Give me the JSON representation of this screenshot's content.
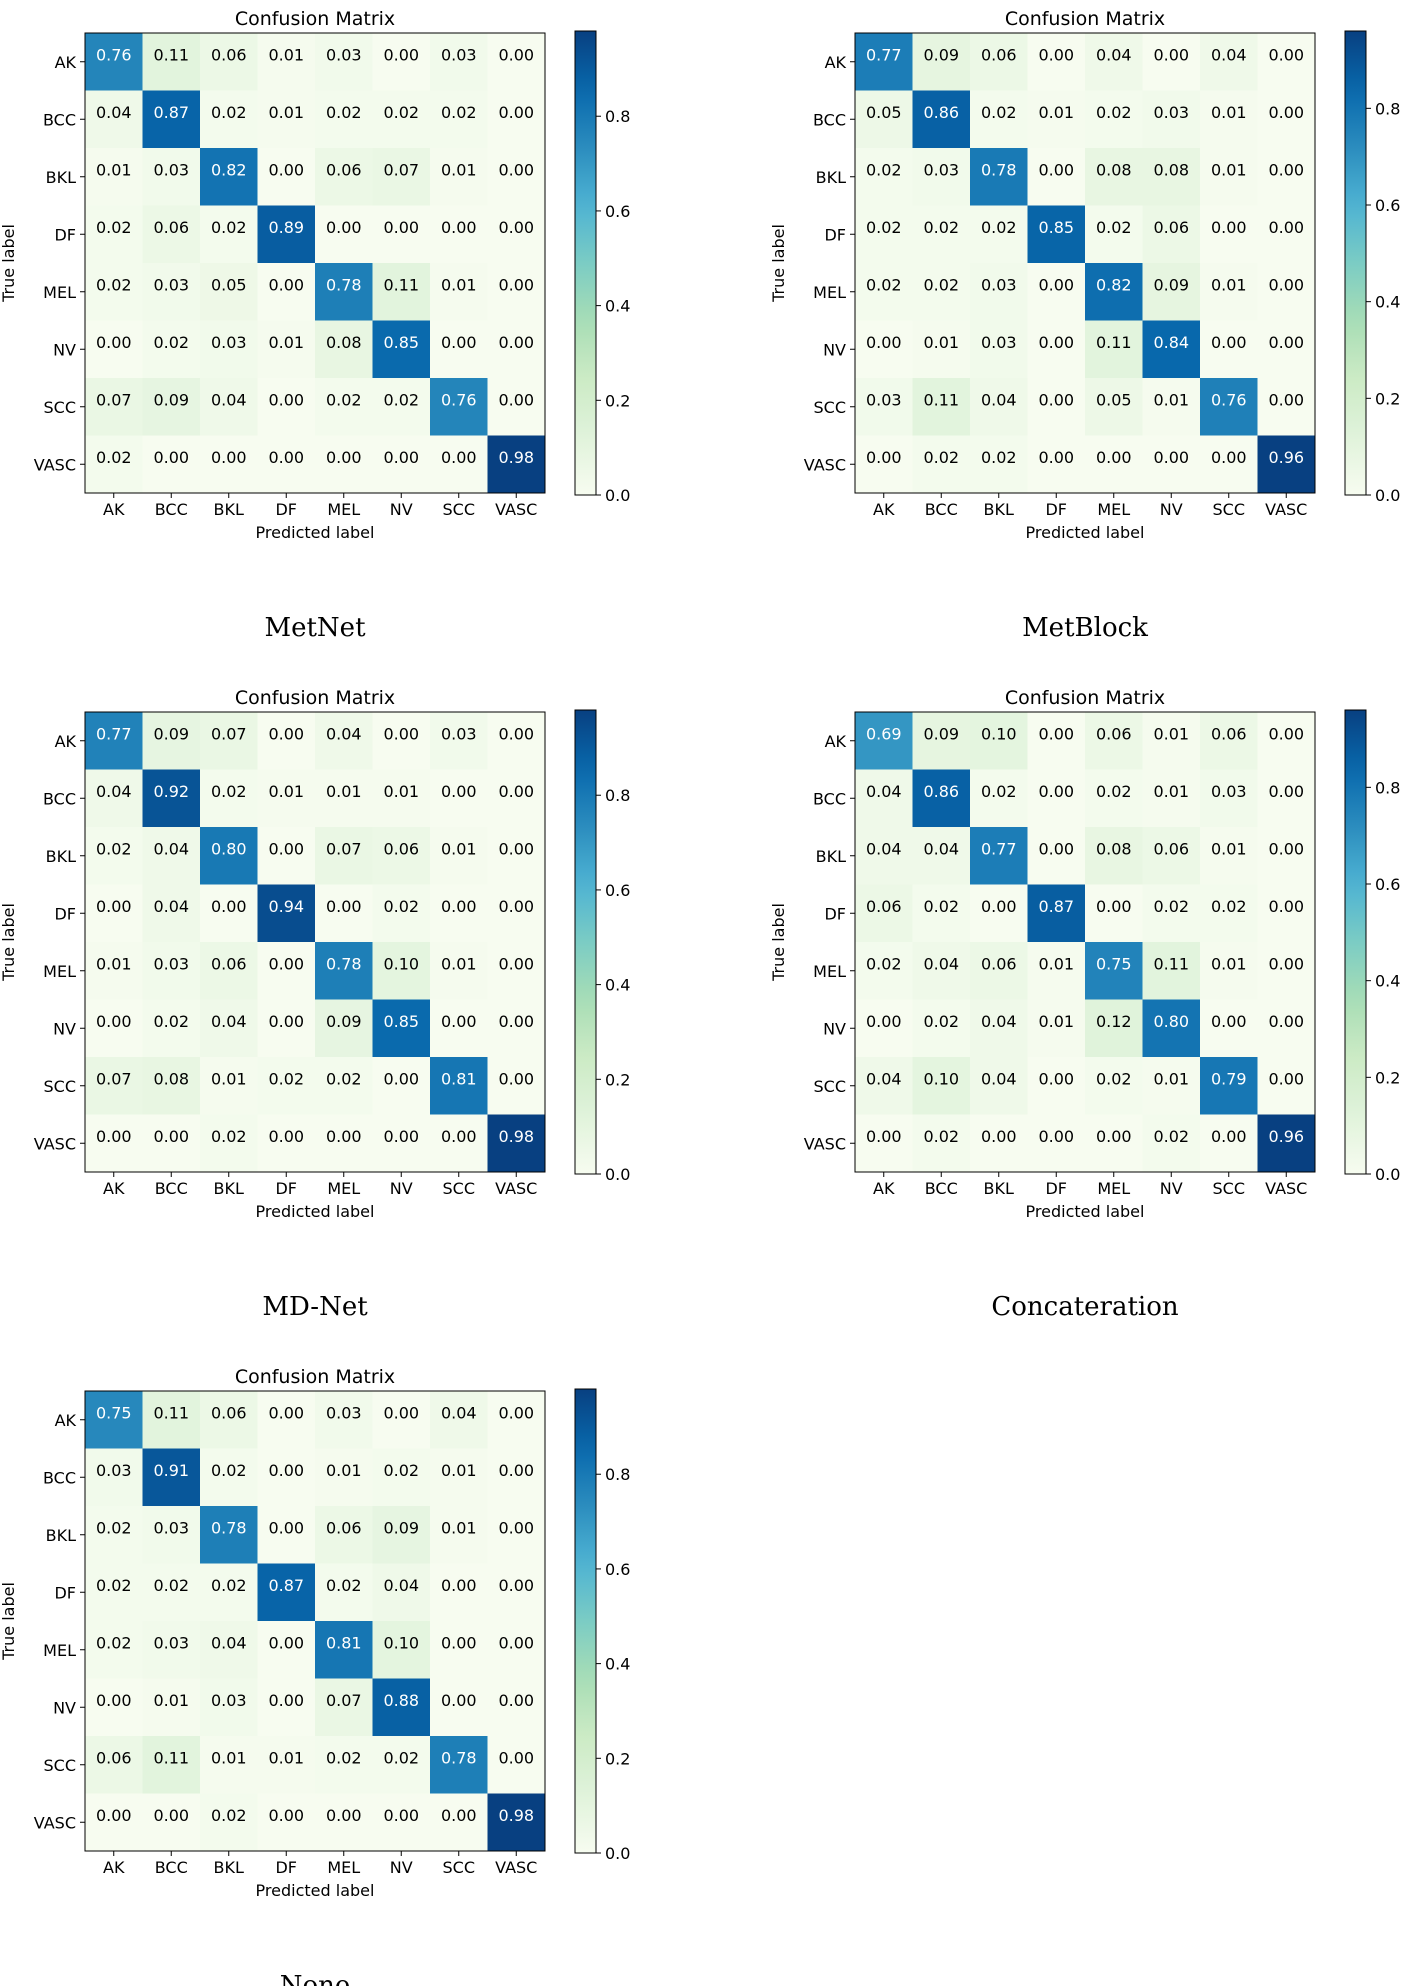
{
  "chart_data": [
    {
      "type": "heatmap",
      "title": "Confusion Matrix",
      "caption": "MetNet",
      "xlabel": "Predicted label",
      "ylabel": "True label",
      "categories": [
        "AK",
        "BCC",
        "BKL",
        "DF",
        "MEL",
        "NV",
        "SCC",
        "VASC"
      ],
      "values": [
        [
          0.76,
          0.11,
          0.06,
          0.01,
          0.03,
          0.0,
          0.03,
          0.0
        ],
        [
          0.04,
          0.87,
          0.02,
          0.01,
          0.02,
          0.02,
          0.02,
          0.0
        ],
        [
          0.01,
          0.03,
          0.82,
          0.0,
          0.06,
          0.07,
          0.01,
          0.0
        ],
        [
          0.02,
          0.06,
          0.02,
          0.89,
          0.0,
          0.0,
          0.0,
          0.0
        ],
        [
          0.02,
          0.03,
          0.05,
          0.0,
          0.78,
          0.11,
          0.01,
          0.0
        ],
        [
          0.0,
          0.02,
          0.03,
          0.01,
          0.08,
          0.85,
          0.0,
          0.0
        ],
        [
          0.07,
          0.09,
          0.04,
          0.0,
          0.02,
          0.02,
          0.76,
          0.0
        ],
        [
          0.02,
          0.0,
          0.0,
          0.0,
          0.0,
          0.0,
          0.0,
          0.98
        ]
      ],
      "colorbar_ticks": [
        "0.0",
        "0.2",
        "0.4",
        "0.6",
        "0.8"
      ],
      "colorbar_range": [
        0,
        0.98
      ]
    },
    {
      "type": "heatmap",
      "title": "Confusion Matrix",
      "caption": "MetBlock",
      "xlabel": "Predicted label",
      "ylabel": "True label",
      "categories": [
        "AK",
        "BCC",
        "BKL",
        "DF",
        "MEL",
        "NV",
        "SCC",
        "VASC"
      ],
      "values": [
        [
          0.77,
          0.09,
          0.06,
          0.0,
          0.04,
          0.0,
          0.04,
          0.0
        ],
        [
          0.05,
          0.86,
          0.02,
          0.01,
          0.02,
          0.03,
          0.01,
          0.0
        ],
        [
          0.02,
          0.03,
          0.78,
          0.0,
          0.08,
          0.08,
          0.01,
          0.0
        ],
        [
          0.02,
          0.02,
          0.02,
          0.85,
          0.02,
          0.06,
          0.0,
          0.0
        ],
        [
          0.02,
          0.02,
          0.03,
          0.0,
          0.82,
          0.09,
          0.01,
          0.0
        ],
        [
          0.0,
          0.01,
          0.03,
          0.0,
          0.11,
          0.84,
          0.0,
          0.0
        ],
        [
          0.03,
          0.11,
          0.04,
          0.0,
          0.05,
          0.01,
          0.76,
          0.0
        ],
        [
          0.0,
          0.02,
          0.02,
          0.0,
          0.0,
          0.0,
          0.0,
          0.96
        ]
      ],
      "colorbar_ticks": [
        "0.0",
        "0.2",
        "0.4",
        "0.6",
        "0.8"
      ],
      "colorbar_range": [
        0,
        0.96
      ]
    },
    {
      "type": "heatmap",
      "title": "Confusion Matrix",
      "caption": "MD-Net",
      "xlabel": "Predicted label",
      "ylabel": "True label",
      "categories": [
        "AK",
        "BCC",
        "BKL",
        "DF",
        "MEL",
        "NV",
        "SCC",
        "VASC"
      ],
      "values": [
        [
          0.77,
          0.09,
          0.07,
          0.0,
          0.04,
          0.0,
          0.03,
          0.0
        ],
        [
          0.04,
          0.92,
          0.02,
          0.01,
          0.01,
          0.01,
          0.0,
          0.0
        ],
        [
          0.02,
          0.04,
          0.8,
          0.0,
          0.07,
          0.06,
          0.01,
          0.0
        ],
        [
          0.0,
          0.04,
          0.0,
          0.94,
          0.0,
          0.02,
          0.0,
          0.0
        ],
        [
          0.01,
          0.03,
          0.06,
          0.0,
          0.78,
          0.1,
          0.01,
          0.0
        ],
        [
          0.0,
          0.02,
          0.04,
          0.0,
          0.09,
          0.85,
          0.0,
          0.0
        ],
        [
          0.07,
          0.08,
          0.01,
          0.02,
          0.02,
          0.0,
          0.81,
          0.0
        ],
        [
          0.0,
          0.0,
          0.02,
          0.0,
          0.0,
          0.0,
          0.0,
          0.98
        ]
      ],
      "colorbar_ticks": [
        "0.0",
        "0.2",
        "0.4",
        "0.6",
        "0.8"
      ],
      "colorbar_range": [
        0,
        0.98
      ]
    },
    {
      "type": "heatmap",
      "title": "Confusion Matrix",
      "caption": "Concateration",
      "xlabel": "Predicted label",
      "ylabel": "True label",
      "categories": [
        "AK",
        "BCC",
        "BKL",
        "DF",
        "MEL",
        "NV",
        "SCC",
        "VASC"
      ],
      "values": [
        [
          0.69,
          0.09,
          0.1,
          0.0,
          0.06,
          0.01,
          0.06,
          0.0
        ],
        [
          0.04,
          0.86,
          0.02,
          0.0,
          0.02,
          0.01,
          0.03,
          0.0
        ],
        [
          0.04,
          0.04,
          0.77,
          0.0,
          0.08,
          0.06,
          0.01,
          0.0
        ],
        [
          0.06,
          0.02,
          0.0,
          0.87,
          0.0,
          0.02,
          0.02,
          0.0
        ],
        [
          0.02,
          0.04,
          0.06,
          0.01,
          0.75,
          0.11,
          0.01,
          0.0
        ],
        [
          0.0,
          0.02,
          0.04,
          0.01,
          0.12,
          0.8,
          0.0,
          0.0
        ],
        [
          0.04,
          0.1,
          0.04,
          0.0,
          0.02,
          0.01,
          0.79,
          0.0
        ],
        [
          0.0,
          0.02,
          0.0,
          0.0,
          0.0,
          0.02,
          0.0,
          0.96
        ]
      ],
      "colorbar_ticks": [
        "0.0",
        "0.2",
        "0.4",
        "0.6",
        "0.8"
      ],
      "colorbar_range": [
        0,
        0.96
      ]
    },
    {
      "type": "heatmap",
      "title": "Confusion Matrix",
      "caption": "None",
      "xlabel": "Predicted label",
      "ylabel": "True label",
      "categories": [
        "AK",
        "BCC",
        "BKL",
        "DF",
        "MEL",
        "NV",
        "SCC",
        "VASC"
      ],
      "values": [
        [
          0.75,
          0.11,
          0.06,
          0.0,
          0.03,
          0.0,
          0.04,
          0.0
        ],
        [
          0.03,
          0.91,
          0.02,
          0.0,
          0.01,
          0.02,
          0.01,
          0.0
        ],
        [
          0.02,
          0.03,
          0.78,
          0.0,
          0.06,
          0.09,
          0.01,
          0.0
        ],
        [
          0.02,
          0.02,
          0.02,
          0.87,
          0.02,
          0.04,
          0.0,
          0.0
        ],
        [
          0.02,
          0.03,
          0.04,
          0.0,
          0.81,
          0.1,
          0.0,
          0.0
        ],
        [
          0.0,
          0.01,
          0.03,
          0.0,
          0.07,
          0.88,
          0.0,
          0.0
        ],
        [
          0.06,
          0.11,
          0.01,
          0.01,
          0.02,
          0.02,
          0.78,
          0.0
        ],
        [
          0.0,
          0.0,
          0.02,
          0.0,
          0.0,
          0.0,
          0.0,
          0.98
        ]
      ],
      "colorbar_ticks": [
        "0.0",
        "0.2",
        "0.4",
        "0.6",
        "0.8"
      ],
      "colorbar_range": [
        0,
        0.98
      ]
    }
  ]
}
